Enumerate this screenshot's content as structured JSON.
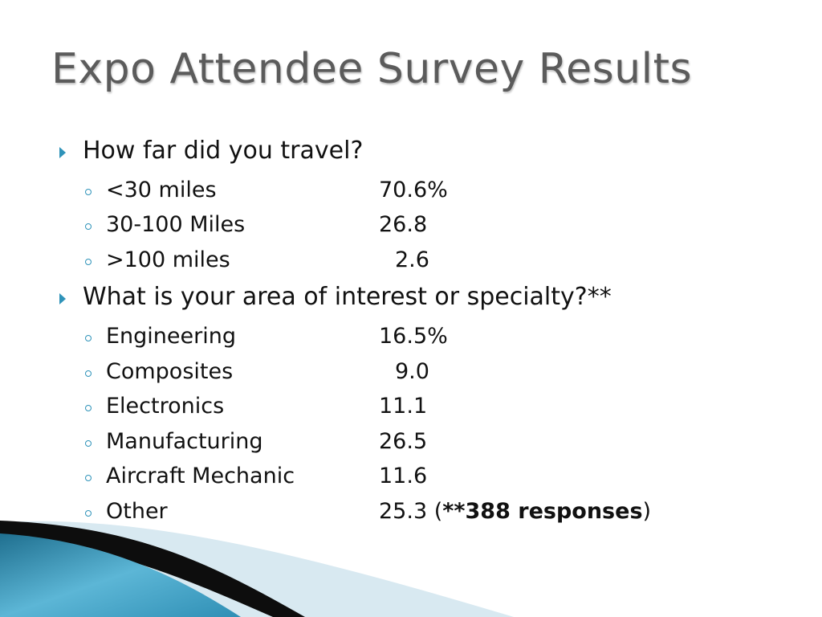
{
  "slide": {
    "title": "Expo Attendee Survey Results",
    "sections": [
      {
        "heading": "How far did you travel?",
        "items": [
          {
            "label": "<30 miles",
            "value": "70.6%"
          },
          {
            "label": "30-100 Miles",
            "value": "26.8"
          },
          {
            "label": ">100 miles",
            "value": "2.6"
          }
        ]
      },
      {
        "heading": "What is your area of interest or specialty?**",
        "items": [
          {
            "label": "Engineering",
            "value": "16.5%"
          },
          {
            "label": "Composites",
            "value": "9.0"
          },
          {
            "label": "Electronics",
            "value": "11.1"
          },
          {
            "label": "Manufacturing",
            "value": "26.5"
          },
          {
            "label": "Aircraft Mechanic",
            "value": "11.6"
          },
          {
            "label": "Other",
            "value": "25.3",
            "note_open": "(",
            "note_bold": "**388 responses",
            "note_close": ")"
          }
        ]
      }
    ]
  },
  "theme": {
    "title_color": "#5b5b5b",
    "bullet_color": "#2f93b9",
    "wave_color_dark": "#1f6f8f",
    "wave_color_light": "#5cb6d6"
  }
}
